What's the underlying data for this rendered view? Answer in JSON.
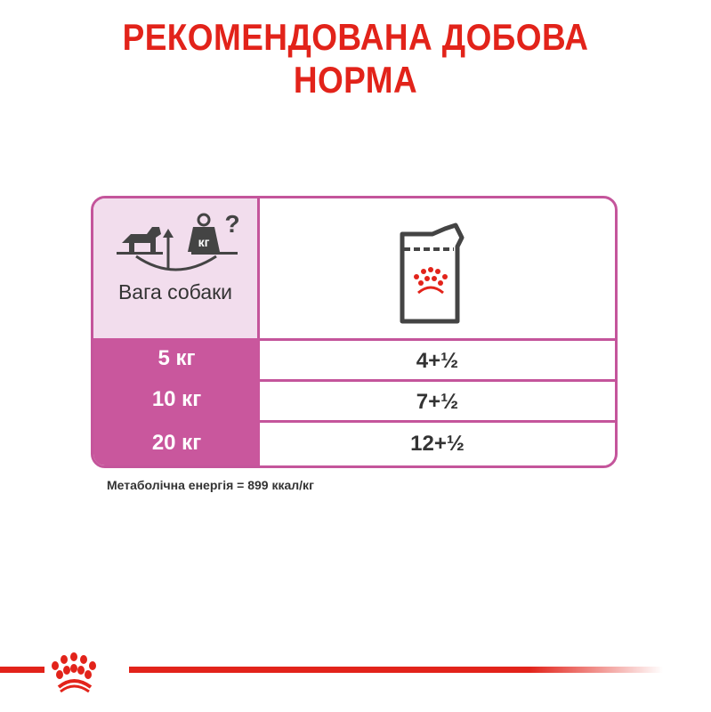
{
  "title": {
    "line1": "РЕКОМЕНДОВАНА ДОБОВА",
    "line2": "НОРМА"
  },
  "table": {
    "header_label": "Вага собаки",
    "header_icons": [
      "dog-on-scale-icon",
      "kg-weight-icon",
      "question-icon",
      "pouch-icon"
    ],
    "kg_badge": "кг",
    "question": "?",
    "rows": [
      {
        "weight": "5 кг",
        "amount": "4+½"
      },
      {
        "weight": "10 кг",
        "amount": "7+½"
      },
      {
        "weight": "20 кг",
        "amount": "12+½"
      }
    ]
  },
  "note": "Метаболічна енергія = 899 ккал/кг",
  "colors": {
    "brand_red": "#e2231a",
    "pink": "#c9579d",
    "light_pink": "#f2dded"
  }
}
